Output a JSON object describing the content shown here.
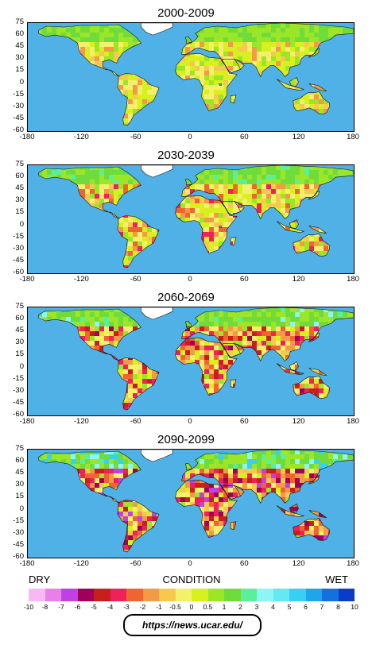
{
  "panels": [
    {
      "title": "2000-2009",
      "intensity": 0
    },
    {
      "title": "2030-2039",
      "intensity": 1
    },
    {
      "title": "2060-2069",
      "intensity": 2
    },
    {
      "title": "2090-2099",
      "intensity": 3
    }
  ],
  "y_ticks": [
    "75",
    "60",
    "45",
    "30",
    "15",
    "0",
    "-15",
    "-30",
    "-45",
    "-60"
  ],
  "x_ticks": [
    "-180",
    "-120",
    "-60",
    "0",
    "60",
    "120",
    "180"
  ],
  "legend": {
    "left_label": "DRY",
    "center_label": "CONDITION",
    "right_label": "WET",
    "colors": [
      "#f7b8f4",
      "#e880e8",
      "#c040e8",
      "#a0005a",
      "#c81e1e",
      "#f0205a",
      "#f06430",
      "#f29a46",
      "#f6c850",
      "#f5f06c",
      "#d8f01e",
      "#9ce628",
      "#70dc3c",
      "#5aef9a",
      "#8df5f5",
      "#64e8f2",
      "#38d0f2",
      "#1ea6e8",
      "#1470dc",
      "#0a3cc8"
    ],
    "ticks": [
      "-10",
      "-8",
      "-7",
      "-6",
      "-5",
      "-4",
      "-3",
      "-2",
      "-1",
      "-0.5",
      "0",
      "0.5",
      "1",
      "2",
      "3",
      "4",
      "5",
      "6",
      "7",
      "8",
      "10"
    ]
  },
  "source_url": "https://news.ucar.edu/"
}
